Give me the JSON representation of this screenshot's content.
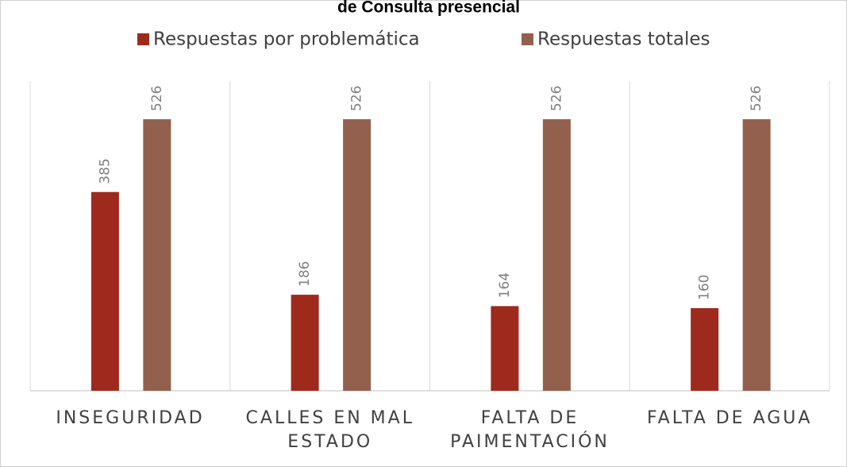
{
  "chart_data": {
    "type": "bar",
    "title": "de Consulta presencial",
    "categories": [
      "INSEGURIDAD",
      "CALLES EN MAL ESTADO",
      "FALTA DE PAIMENTACIÓN",
      "FALTA DE AGUA"
    ],
    "series": [
      {
        "name": "Respuestas por problemática",
        "color": "#9e2a1e",
        "values": [
          385,
          186,
          164,
          160
        ]
      },
      {
        "name": "Respuestas totales",
        "color": "#94604e",
        "values": [
          526,
          526,
          526,
          526
        ]
      }
    ],
    "ylim": [
      0,
      600
    ],
    "legend": "top"
  }
}
